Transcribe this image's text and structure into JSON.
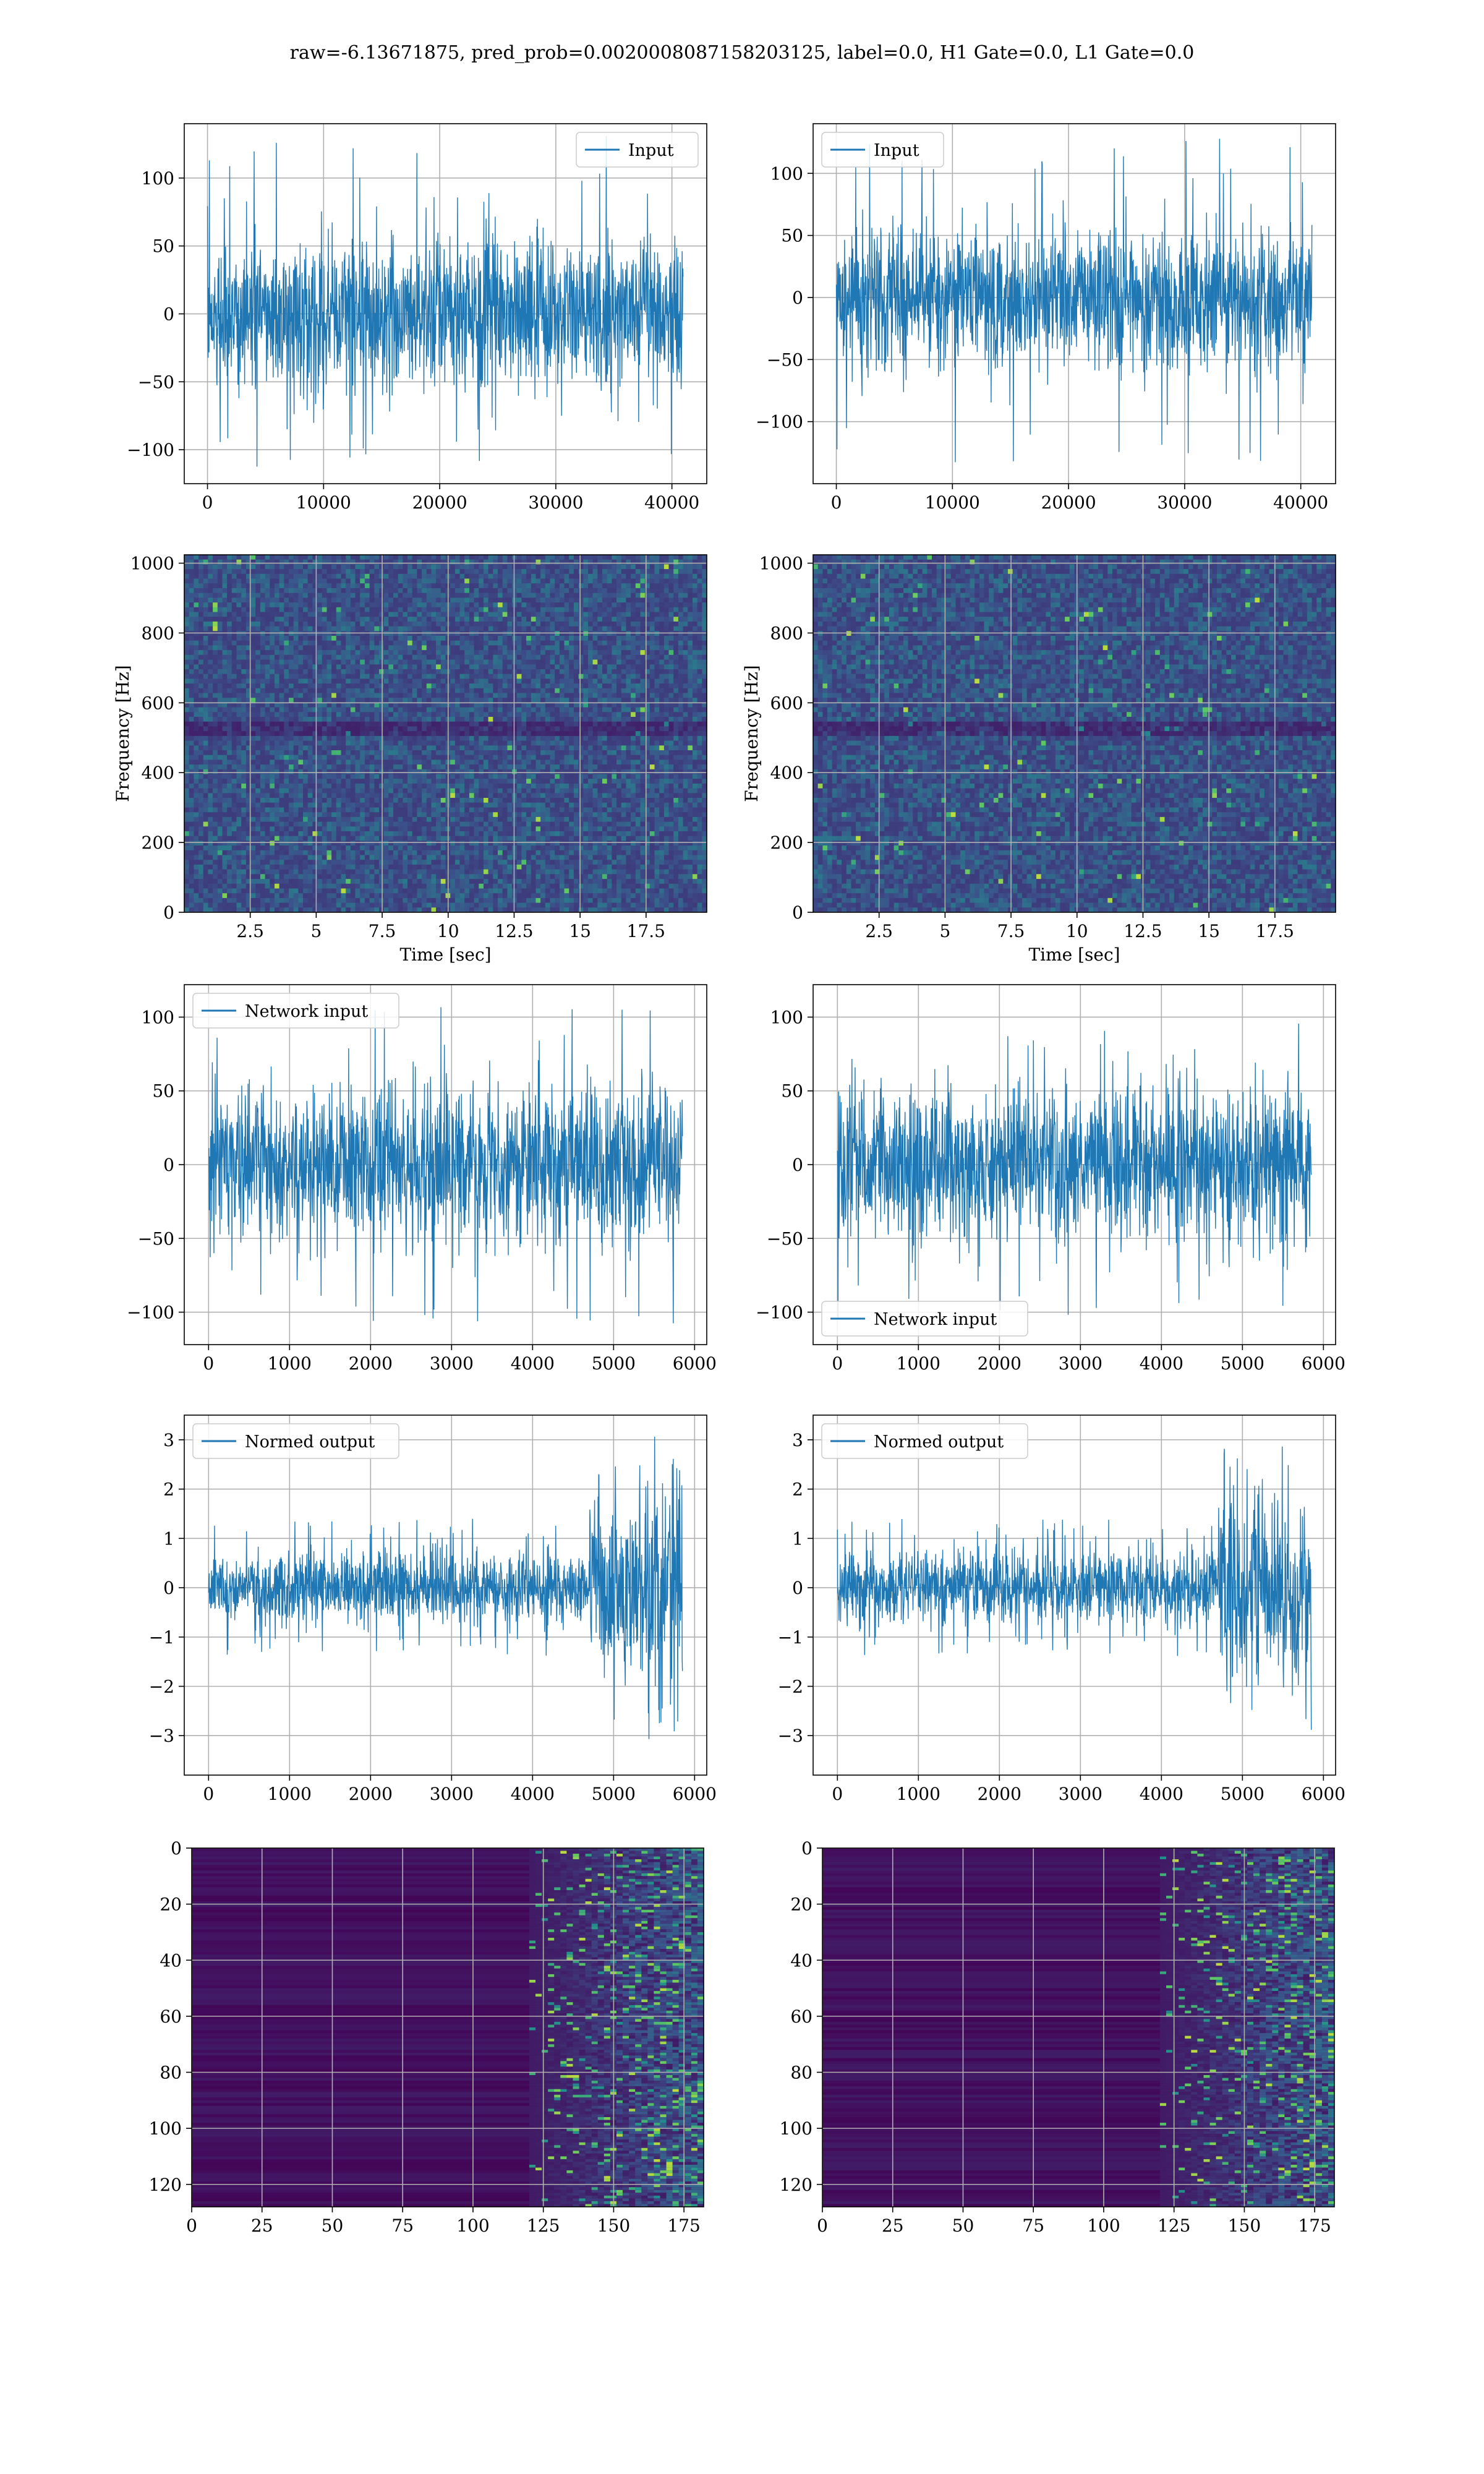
{
  "suptitle": "raw=-6.13671875, pred_prob=0.0020008087158203125, label=0.0, H1 Gate=0.0, L1 Gate=0.0",
  "colors": {
    "line": "#1f77b4",
    "grid": "#b0b0b0",
    "viridis_low": "#440154",
    "viridis_mid": "#21918c",
    "viridis_high": "#fde725"
  },
  "chart_data": [
    {
      "id": "h1-input",
      "type": "line",
      "legend_label": "Input",
      "legend_loc": "upper right",
      "xlim": [
        -2000,
        43000
      ],
      "ylim": [
        -125,
        140
      ],
      "xticks": [
        0,
        10000,
        20000,
        30000,
        40000
      ],
      "yticks": [
        -100,
        -50,
        0,
        50,
        100
      ],
      "x_range": [
        0,
        40960
      ],
      "envelope": {
        "typical_low": -60,
        "typical_high": 60,
        "min": -113,
        "max": 132
      },
      "xlabel": "",
      "ylabel": "",
      "grid": true
    },
    {
      "id": "l1-input",
      "type": "line",
      "legend_label": "Input",
      "legend_loc": "upper left",
      "xlim": [
        -2000,
        43000
      ],
      "ylim": [
        -150,
        140
      ],
      "xticks": [
        0,
        10000,
        20000,
        30000,
        40000
      ],
      "yticks": [
        -100,
        -50,
        0,
        50,
        100
      ],
      "x_range": [
        0,
        40960
      ],
      "envelope": {
        "typical_low": -60,
        "typical_high": 60,
        "min": -135,
        "max": 128
      },
      "xlabel": "",
      "ylabel": "",
      "grid": true
    },
    {
      "id": "h1-spectrogram",
      "type": "heatmap",
      "xlim": [
        0,
        19.8
      ],
      "ylim": [
        0,
        1024
      ],
      "xticks": [
        2.5,
        5.0,
        7.5,
        10.0,
        12.5,
        15.0,
        17.5
      ],
      "yticks": [
        0,
        200,
        400,
        600,
        800,
        1000
      ],
      "xlabel": "Time [sec]",
      "ylabel": "Frequency [Hz]",
      "grid": true,
      "colormap": "viridis"
    },
    {
      "id": "l1-spectrogram",
      "type": "heatmap",
      "xlim": [
        0,
        19.8
      ],
      "ylim": [
        0,
        1024
      ],
      "xticks": [
        2.5,
        5.0,
        7.5,
        10.0,
        12.5,
        15.0,
        17.5
      ],
      "yticks": [
        0,
        200,
        400,
        600,
        800,
        1000
      ],
      "xlabel": "Time [sec]",
      "ylabel": "Frequency [Hz]",
      "grid": true,
      "colormap": "viridis"
    },
    {
      "id": "h1-network-input",
      "type": "line",
      "legend_label": "Network input",
      "legend_loc": "upper left",
      "xlim": [
        -300,
        6150
      ],
      "ylim": [
        -122,
        122
      ],
      "xticks": [
        0,
        1000,
        2000,
        3000,
        4000,
        5000,
        6000
      ],
      "yticks": [
        -100,
        -50,
        0,
        50,
        100
      ],
      "x_range": [
        0,
        5850
      ],
      "envelope": {
        "typical_low": -55,
        "typical_high": 55,
        "min": -113,
        "max": 111
      },
      "xlabel": "",
      "ylabel": "",
      "grid": true
    },
    {
      "id": "l1-network-input",
      "type": "line",
      "legend_label": "Network input",
      "legend_loc": "lower left",
      "xlim": [
        -300,
        6150
      ],
      "ylim": [
        -122,
        122
      ],
      "xticks": [
        0,
        1000,
        2000,
        3000,
        4000,
        5000,
        6000
      ],
      "yticks": [
        -100,
        -50,
        0,
        50,
        100
      ],
      "x_range": [
        0,
        5850
      ],
      "envelope": {
        "typical_low": -55,
        "typical_high": 55,
        "min": -105,
        "max": 102
      },
      "xlabel": "",
      "ylabel": "",
      "grid": true
    },
    {
      "id": "h1-normed-output",
      "type": "line",
      "legend_label": "Normed output",
      "legend_loc": "upper left",
      "xlim": [
        -300,
        6150
      ],
      "ylim": [
        -3.8,
        3.5
      ],
      "xticks": [
        0,
        1000,
        2000,
        3000,
        4000,
        5000,
        6000
      ],
      "yticks": [
        -3,
        -2,
        -1,
        0,
        1,
        2,
        3
      ],
      "x_range": [
        0,
        5850
      ],
      "segments": [
        {
          "x": [
            0,
            4700
          ],
          "typical": 0.6,
          "peak": 1.4
        },
        {
          "x": [
            4700,
            5850
          ],
          "typical": 1.6,
          "peak": 3.2,
          "min": -3.5
        }
      ],
      "xlabel": "",
      "ylabel": "",
      "grid": true
    },
    {
      "id": "l1-normed-output",
      "type": "line",
      "legend_label": "Normed output",
      "legend_loc": "upper left",
      "xlim": [
        -300,
        6150
      ],
      "ylim": [
        -3.8,
        3.5
      ],
      "xticks": [
        0,
        1000,
        2000,
        3000,
        4000,
        5000,
        6000
      ],
      "yticks": [
        -3,
        -2,
        -1,
        0,
        1,
        2,
        3
      ],
      "x_range": [
        0,
        5850
      ],
      "segments": [
        {
          "x": [
            0,
            4700
          ],
          "typical": 0.6,
          "peak": 1.4
        },
        {
          "x": [
            4700,
            5850
          ],
          "typical": 1.6,
          "peak": 3.2,
          "min": -3.5
        }
      ],
      "xlabel": "",
      "ylabel": "",
      "grid": true
    },
    {
      "id": "h1-feature-map",
      "type": "heatmap",
      "xlim": [
        0,
        182
      ],
      "ylim": [
        128,
        0
      ],
      "xticks": [
        0,
        25,
        50,
        75,
        100,
        125,
        150,
        175
      ],
      "yticks": [
        0,
        20,
        40,
        60,
        80,
        100,
        120
      ],
      "active_from_x": 120,
      "xlabel": "",
      "ylabel": "",
      "grid": true,
      "colormap": "viridis"
    },
    {
      "id": "l1-feature-map",
      "type": "heatmap",
      "xlim": [
        0,
        182
      ],
      "ylim": [
        128,
        0
      ],
      "xticks": [
        0,
        25,
        50,
        75,
        100,
        125,
        150,
        175
      ],
      "yticks": [
        0,
        20,
        40,
        60,
        80,
        100,
        120
      ],
      "active_from_x": 120,
      "xlabel": "",
      "ylabel": "",
      "grid": true,
      "colormap": "viridis"
    }
  ]
}
